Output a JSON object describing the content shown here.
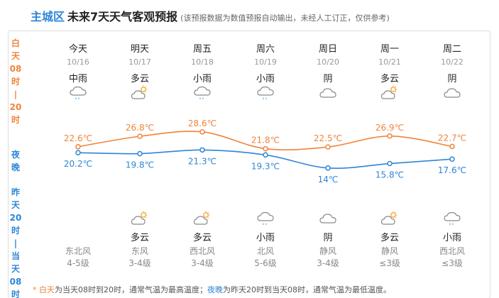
{
  "header": {
    "region": "主城区",
    "title": "未来7天天气客观预报",
    "note": "(该预报数据为数值预报自动输出，未经人工订正，仅供参考)"
  },
  "side": {
    "day": [
      "白",
      "天",
      "08",
      "时",
      "|",
      "20",
      "时"
    ],
    "night": [
      "夜",
      "晚"
    ],
    "yesterday": [
      "昨",
      "天",
      "20",
      "时",
      "|",
      "当",
      "天",
      "08",
      "时"
    ]
  },
  "days": [
    {
      "name": "今天",
      "date": "10/16",
      "day_weather": "中雨",
      "day_icon": "rain-icon",
      "night_weather": "",
      "night_icon": "",
      "wind_dir": "东北风",
      "wind_level": "4-5级"
    },
    {
      "name": "明天",
      "date": "10/17",
      "day_weather": "多云",
      "day_icon": "partly-cloudy-icon",
      "night_weather": "多云",
      "night_icon": "partly-cloudy-icon",
      "wind_dir": "东风",
      "wind_level": "3-4级"
    },
    {
      "name": "周五",
      "date": "10/18",
      "day_weather": "小雨",
      "day_icon": "rain-icon",
      "night_weather": "多云",
      "night_icon": "partly-cloudy-icon",
      "wind_dir": "西北风",
      "wind_level": "3-4级"
    },
    {
      "name": "周六",
      "date": "10/19",
      "day_weather": "小雨",
      "day_icon": "rain-icon",
      "night_weather": "小雨",
      "night_icon": "rain-icon",
      "wind_dir": "北风",
      "wind_level": "5-6级"
    },
    {
      "name": "周日",
      "date": "10/20",
      "day_weather": "阴",
      "day_icon": "overcast-icon",
      "night_weather": "阴",
      "night_icon": "overcast-icon",
      "wind_dir": "静风",
      "wind_level": "3-4级"
    },
    {
      "name": "周一",
      "date": "10/21",
      "day_weather": "多云",
      "day_icon": "partly-cloudy-icon",
      "night_weather": "多云",
      "night_icon": "partly-cloudy-icon",
      "wind_dir": "静风",
      "wind_level": "≤3级"
    },
    {
      "name": "周二",
      "date": "10/22",
      "day_weather": "阴",
      "day_icon": "overcast-icon",
      "night_weather": "小雨",
      "night_icon": "rain-icon",
      "wind_dir": "西北风",
      "wind_level": "≤3级"
    }
  ],
  "chart_data": {
    "type": "line",
    "x": [
      "10/16",
      "10/17",
      "10/18",
      "10/19",
      "10/20",
      "10/21",
      "10/22"
    ],
    "series": [
      {
        "name": "白天",
        "values": [
          22.6,
          26.8,
          28.6,
          21.8,
          22.5,
          26.9,
          22.7
        ],
        "labels": [
          "22.6℃",
          "26.8℃",
          "28.6℃",
          "21.8℃",
          "22.5℃",
          "26.9℃",
          "22.7℃"
        ],
        "color": "#f0843a"
      },
      {
        "name": "夜晚",
        "values": [
          20.2,
          19.8,
          21.3,
          19.3,
          14,
          15.8,
          17.6
        ],
        "labels": [
          "20.2℃",
          "19.8℃",
          "21.3℃",
          "19.3℃",
          "14℃",
          "15.8℃",
          "17.6℃"
        ],
        "color": "#2d86d6"
      }
    ]
  },
  "footer": {
    "day_key": "白天",
    "day_text": "为当天08时到20时，通常气温为最高温度；",
    "night_key": "夜晚",
    "night_text": "为昨天20时到当天08时，通常气温为最低温度。"
  }
}
